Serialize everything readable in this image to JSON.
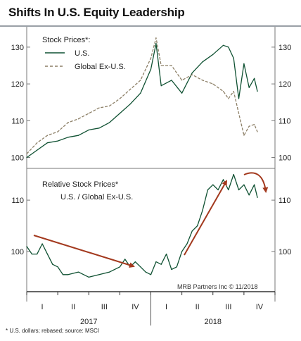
{
  "title": "Shifts In U.S. Equity Leadership",
  "footnote": "* U.S. dollars; rebased; source: MSCI",
  "credit": "MRB Partners Inc © 11/2018",
  "colors": {
    "us": "#0f5132",
    "global": "#8c7f66",
    "arrow": "#a3391e",
    "axis": "#555555"
  },
  "x_axis": {
    "quarters": [
      "I",
      "II",
      "III",
      "IV",
      "I",
      "II",
      "III",
      "IV"
    ],
    "years": [
      "2017",
      "2018"
    ]
  },
  "chart_data": [
    {
      "type": "line",
      "panel": "top",
      "label": "Stock Prices*:",
      "x_unit": "months since Jan 2017",
      "ylim": [
        98,
        134
      ],
      "yticks": [
        100,
        110,
        120,
        130
      ],
      "series": [
        {
          "name": "U.S.",
          "style": "solid",
          "x": [
            0,
            1,
            2,
            3,
            4,
            5,
            6,
            7,
            8,
            9,
            10,
            11,
            12,
            12.5,
            13,
            14,
            15,
            16,
            17,
            18,
            19,
            19.5,
            20,
            20.5,
            21,
            21.5,
            22,
            22.3
          ],
          "y": [
            100,
            102,
            104,
            104.5,
            105.5,
            106,
            107.5,
            108,
            109.5,
            112,
            114.5,
            117.5,
            124,
            131,
            119.5,
            121,
            117.5,
            123,
            126,
            128,
            130.5,
            130,
            127,
            116,
            125.5,
            119,
            121.5,
            118
          ]
        },
        {
          "name": "Global Ex-U.S.",
          "style": "dashed",
          "x": [
            0,
            1,
            2,
            3,
            4,
            5,
            6,
            7,
            8,
            9,
            10,
            11,
            12,
            12.5,
            13,
            14,
            15,
            16,
            17,
            18,
            19,
            19.5,
            20,
            20.5,
            21,
            21.5,
            22,
            22.3
          ],
          "y": [
            101,
            104,
            106,
            107,
            109.5,
            110.5,
            112,
            113.5,
            114,
            116,
            118.5,
            121,
            127,
            132.5,
            125,
            125,
            121,
            122.5,
            121,
            120,
            118,
            116,
            118,
            112,
            106,
            108.5,
            109,
            107
          ]
        }
      ]
    },
    {
      "type": "line",
      "panel": "bottom",
      "label": "Relative Stock Prices*",
      "sublabel": "U.S. / Global Ex-U.S.",
      "x_unit": "months since Jan 2017",
      "ylim": [
        93,
        115.5
      ],
      "yticks": [
        100,
        110
      ],
      "series": [
        {
          "name": "U.S. / Global Ex-U.S.",
          "x": [
            0,
            0.5,
            1,
            1.5,
            2,
            2.5,
            3,
            3.5,
            4,
            5,
            6,
            7,
            8,
            9,
            9.5,
            10,
            10.5,
            11,
            11.5,
            12,
            12.5,
            13,
            13.5,
            14,
            14.5,
            15,
            15.5,
            16,
            16.5,
            17,
            17.5,
            18,
            18.5,
            19,
            19.5,
            20,
            20.5,
            21,
            21.5,
            22,
            22.3
          ],
          "y": [
            101,
            99.5,
            99.5,
            101.5,
            99.5,
            97.5,
            97,
            95.5,
            95.5,
            96,
            95,
            95.5,
            96,
            97,
            98.5,
            97,
            98,
            97,
            96,
            95.5,
            98,
            97.5,
            99.5,
            96.5,
            97,
            100,
            101.5,
            104,
            105,
            108,
            112,
            113,
            112,
            114,
            112,
            115,
            112,
            113,
            111,
            113,
            110.5
          ]
        }
      ]
    }
  ]
}
